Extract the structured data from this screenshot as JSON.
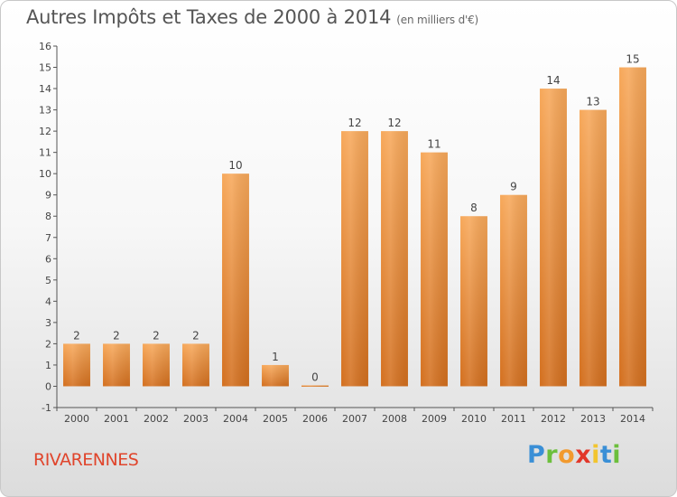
{
  "title": "Autres Impôts et Taxes de 2000 à 2014",
  "subtitle": "(en milliers d'€)",
  "commune": "RIVARENNES",
  "brand": {
    "letters": [
      {
        "char": "P",
        "color": "#3a8fd6"
      },
      {
        "char": "r",
        "color": "#6cbf3c"
      },
      {
        "char": "o",
        "color": "#f29a2e"
      },
      {
        "char": "x",
        "color": "#e2372a"
      },
      {
        "char": "i",
        "color": "#f2c52e"
      },
      {
        "char": "t",
        "color": "#3a8fd6"
      },
      {
        "char": "i",
        "color": "#6cbf3c"
      }
    ]
  },
  "colors": {
    "bar_top": "#f7a85a",
    "bar_bottom": "#d36f1e",
    "accent": "#e0452c"
  },
  "chart_data": {
    "type": "bar",
    "categories": [
      "2000",
      "2001",
      "2002",
      "2003",
      "2004",
      "2005",
      "2006",
      "2007",
      "2008",
      "2009",
      "2010",
      "2011",
      "2012",
      "2013",
      "2014"
    ],
    "values": [
      2,
      2,
      2,
      2,
      10,
      1,
      0,
      12,
      12,
      11,
      8,
      9,
      14,
      13,
      15
    ],
    "ylim": [
      -1,
      16
    ],
    "yticks": [
      -1,
      0,
      1,
      2,
      3,
      4,
      5,
      6,
      7,
      8,
      9,
      10,
      11,
      12,
      13,
      14,
      15,
      16
    ],
    "grid": false
  }
}
